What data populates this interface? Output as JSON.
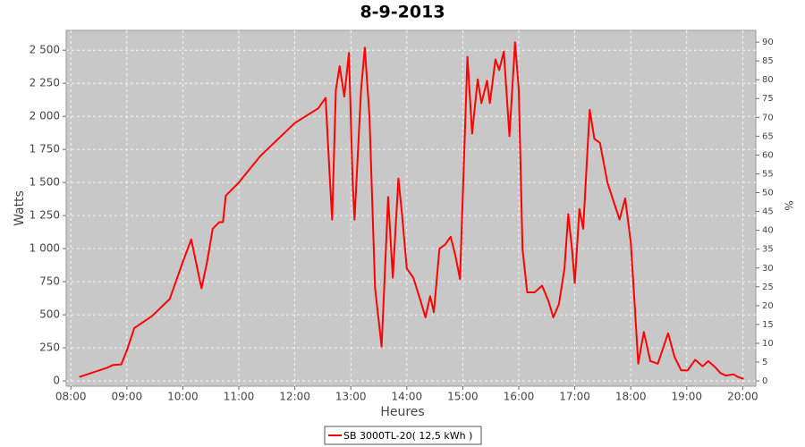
{
  "chart_data": {
    "type": "line",
    "title": "8-9-2013",
    "xlabel": "Heures",
    "ylabel": "Watts",
    "y2label": "%",
    "x": [
      "08:09",
      "08:39",
      "08:45",
      "08:54",
      "09:00",
      "09:08",
      "09:27",
      "09:46",
      "10:00",
      "10:09",
      "10:20",
      "10:26",
      "10:32",
      "10:39",
      "10:43",
      "10:46",
      "11:00",
      "11:23",
      "12:00",
      "12:25",
      "12:33",
      "12:37",
      "12:40",
      "12:44",
      "12:48",
      "12:53",
      "12:58",
      "13:02",
      "13:04",
      "13:11",
      "13:15",
      "13:20",
      "13:26",
      "13:30",
      "13:33",
      "13:37",
      "13:40",
      "13:45",
      "13:51",
      "13:55",
      "14:00",
      "14:07",
      "14:15",
      "14:20",
      "14:25",
      "14:29",
      "14:35",
      "14:41",
      "14:47",
      "14:52",
      "14:57",
      "15:05",
      "15:10",
      "15:16",
      "15:20",
      "15:26",
      "15:29",
      "15:35",
      "15:39",
      "15:44",
      "15:50",
      "15:56",
      "16:00",
      "16:04",
      "16:09",
      "16:17",
      "16:25",
      "16:32",
      "16:37",
      "16:43",
      "16:49",
      "16:53",
      "16:57",
      "17:00",
      "17:05",
      "17:09",
      "17:16",
      "17:21",
      "17:27",
      "17:35",
      "17:41",
      "17:48",
      "17:54",
      "18:00",
      "18:04",
      "18:08",
      "18:14",
      "18:21",
      "18:29",
      "18:40",
      "18:47",
      "18:54",
      "19:01",
      "19:09",
      "19:17",
      "19:23",
      "19:31",
      "19:36",
      "19:42",
      "19:50",
      "19:55",
      "20:01"
    ],
    "series": [
      {
        "name": "SB 3000TL-20( 12,5 kWh )",
        "color": "#ff0000",
        "values": [
          30,
          100,
          120,
          125,
          230,
          400,
          490,
          620,
          900,
          1070,
          700,
          900,
          1150,
          1200,
          1200,
          1400,
          1500,
          1700,
          1950,
          2060,
          2140,
          1600,
          1220,
          2200,
          2380,
          2150,
          2480,
          1500,
          1220,
          2200,
          2520,
          2000,
          700,
          450,
          260,
          900,
          1390,
          780,
          1530,
          1250,
          850,
          780,
          600,
          480,
          640,
          520,
          1000,
          1030,
          1090,
          950,
          770,
          2450,
          1870,
          2280,
          2100,
          2270,
          2100,
          2430,
          2350,
          2490,
          1850,
          2560,
          2200,
          1000,
          670,
          670,
          720,
          600,
          480,
          580,
          850,
          1260,
          1000,
          740,
          1300,
          1150,
          2050,
          1830,
          1800,
          1500,
          1370,
          1220,
          1380,
          1050,
          600,
          130,
          370,
          150,
          130,
          360,
          180,
          80,
          80,
          160,
          110,
          150,
          100,
          60,
          40,
          50,
          30,
          15
        ]
      }
    ],
    "xlim": [
      "07:55",
      "20:14"
    ],
    "xticks": [
      "08:00",
      "09:00",
      "10:00",
      "11:00",
      "12:00",
      "13:00",
      "14:00",
      "15:00",
      "16:00",
      "17:00",
      "18:00",
      "19:00",
      "20:00"
    ],
    "ylim": [
      -40,
      2650
    ],
    "yticks": [
      0,
      250,
      500,
      750,
      {
        "value": 1000,
        "label": "1 000"
      },
      {
        "value": 1250,
        "label": "1 250"
      },
      {
        "value": 1500,
        "label": "1 500"
      },
      {
        "value": 1750,
        "label": "1 750"
      },
      {
        "value": 2000,
        "label": "2 000"
      },
      {
        "value": 2250,
        "label": "2 250"
      },
      {
        "value": 2500,
        "label": "2 500"
      }
    ],
    "y2lim": [
      -1.4,
      93.1
    ],
    "y2ticks": [
      0,
      5,
      10,
      15,
      20,
      25,
      30,
      35,
      40,
      45,
      50,
      55,
      60,
      65,
      70,
      75,
      80,
      85,
      90
    ],
    "grid": true
  }
}
